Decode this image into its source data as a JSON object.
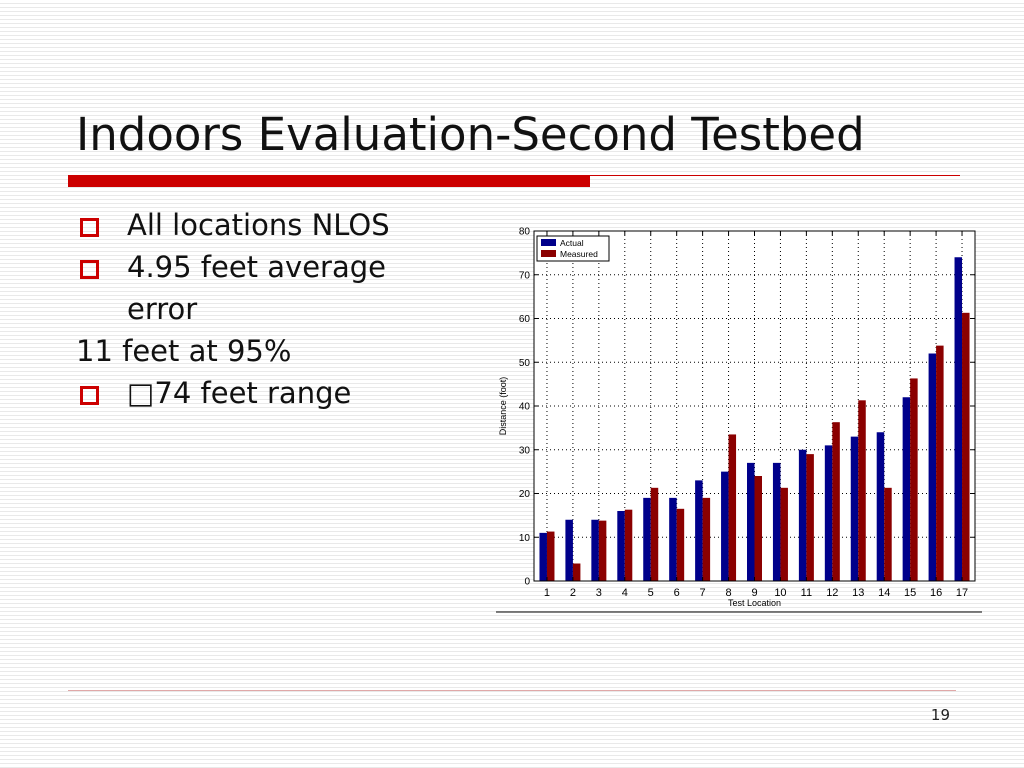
{
  "slide": {
    "title": "Indoors Evaluation-Second Testbed",
    "page_number": "19",
    "bullets": [
      {
        "text": "All locations NLOS",
        "bulleted": true
      },
      {
        "text": "4.95 feet average",
        "continuation": "error",
        "bulleted": true
      },
      {
        "text": "11 feet at 95%",
        "bulleted": false
      },
      {
        "text": "□74 feet range",
        "bulleted": true
      }
    ]
  },
  "chart_data": {
    "type": "bar",
    "title": "",
    "xlabel": "Test Location",
    "ylabel": "Distance (foot)",
    "categories": [
      "1",
      "2",
      "3",
      "4",
      "5",
      "6",
      "7",
      "8",
      "9",
      "10",
      "11",
      "12",
      "13",
      "14",
      "15",
      "16",
      "17"
    ],
    "series": [
      {
        "name": "Actual",
        "color": "#00008b",
        "values": [
          11,
          14,
          14,
          16,
          19,
          19,
          23,
          25,
          27,
          27,
          30,
          31,
          33,
          34,
          42,
          52,
          74
        ]
      },
      {
        "name": "Measured",
        "color": "#8b0000",
        "values": [
          11.3,
          4,
          13.8,
          16.3,
          21.3,
          16.5,
          19,
          33.5,
          24,
          21.3,
          29,
          36.3,
          41.3,
          21.3,
          46.3,
          53.8,
          61.3
        ]
      }
    ],
    "ylim": [
      0,
      80
    ],
    "yticks": [
      0,
      10,
      20,
      30,
      40,
      50,
      60,
      70,
      80
    ],
    "grid": true,
    "legend_position": "top-left"
  }
}
